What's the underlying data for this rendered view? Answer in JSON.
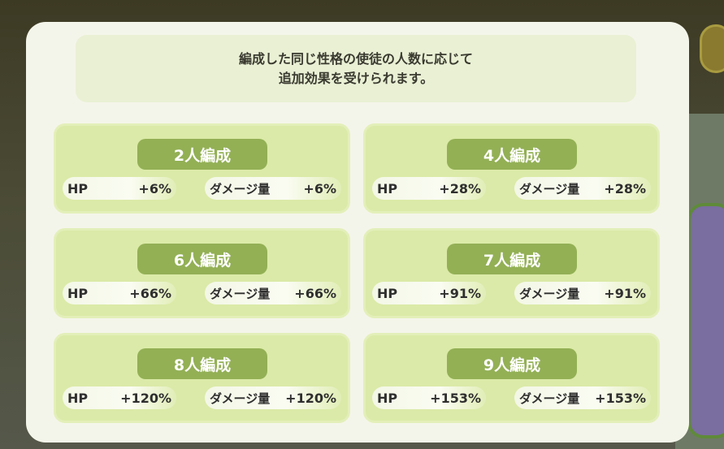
{
  "header": {
    "line1": "編成した同じ性格の使徒の人数に応じて",
    "line2": "追加効果を受けられます。"
  },
  "labels": {
    "hp": "HP",
    "damage": "ダメージ量"
  },
  "tiers": [
    {
      "title": "2人編成",
      "hp": "+6%",
      "damage": "+6%"
    },
    {
      "title": "4人編成",
      "hp": "+28%",
      "damage": "+28%"
    },
    {
      "title": "6人編成",
      "hp": "+66%",
      "damage": "+66%"
    },
    {
      "title": "7人編成",
      "hp": "+91%",
      "damage": "+91%"
    },
    {
      "title": "8人編成",
      "hp": "+120%",
      "damage": "+120%"
    },
    {
      "title": "9人編成",
      "hp": "+153%",
      "damage": "+153%"
    }
  ],
  "colors": {
    "card": "#dbeaa8",
    "pill": "#93b055",
    "dialog": "#f4f5ea"
  }
}
